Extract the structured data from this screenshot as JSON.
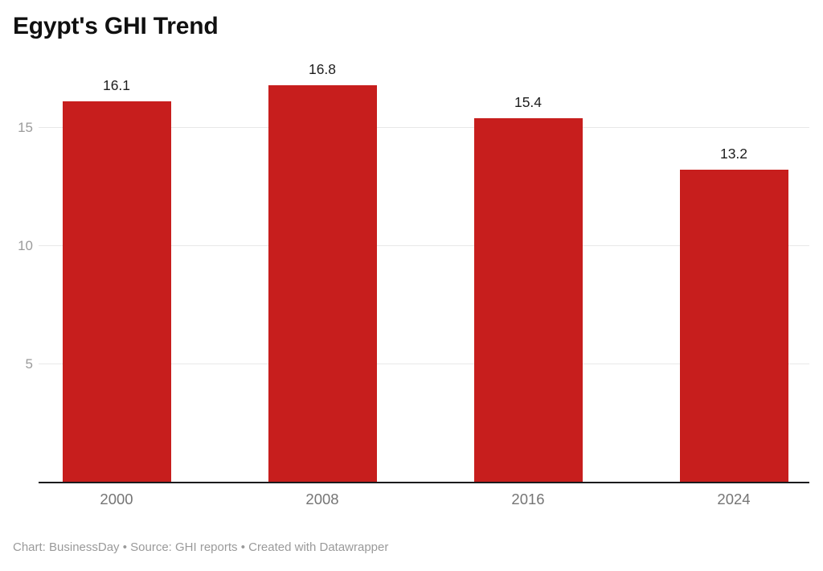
{
  "title": "Egypt's GHI Trend",
  "footer": "Chart: BusinessDay • Source: GHI reports • Created with Datawrapper",
  "colors": {
    "bar": "#c71e1d",
    "axis_line": "#1b1b1d",
    "gridline": "#e8e8e8",
    "y_label": "#9b9b9b",
    "x_label": "#757575",
    "value_label": "#1d1d1d",
    "title_text": "#101010",
    "footer_text": "#9a9a9a",
    "background": "#ffffff"
  },
  "chart_data": {
    "type": "bar",
    "title": "Egypt's GHI Trend",
    "categories": [
      "2000",
      "2008",
      "2016",
      "2024"
    ],
    "values": [
      16.1,
      16.8,
      15.4,
      13.2
    ],
    "value_labels": [
      "16.1",
      "16.8",
      "15.4",
      "13.2"
    ],
    "xlabel": "",
    "ylabel": "",
    "y_ticks": [
      5,
      10,
      15
    ],
    "ylim": [
      0,
      16.8
    ],
    "grid": "horizontal-only",
    "legend": "none",
    "bar_color": "#c71e1d",
    "source_note": "Chart: BusinessDay • Source: GHI reports • Created with Datawrapper"
  }
}
